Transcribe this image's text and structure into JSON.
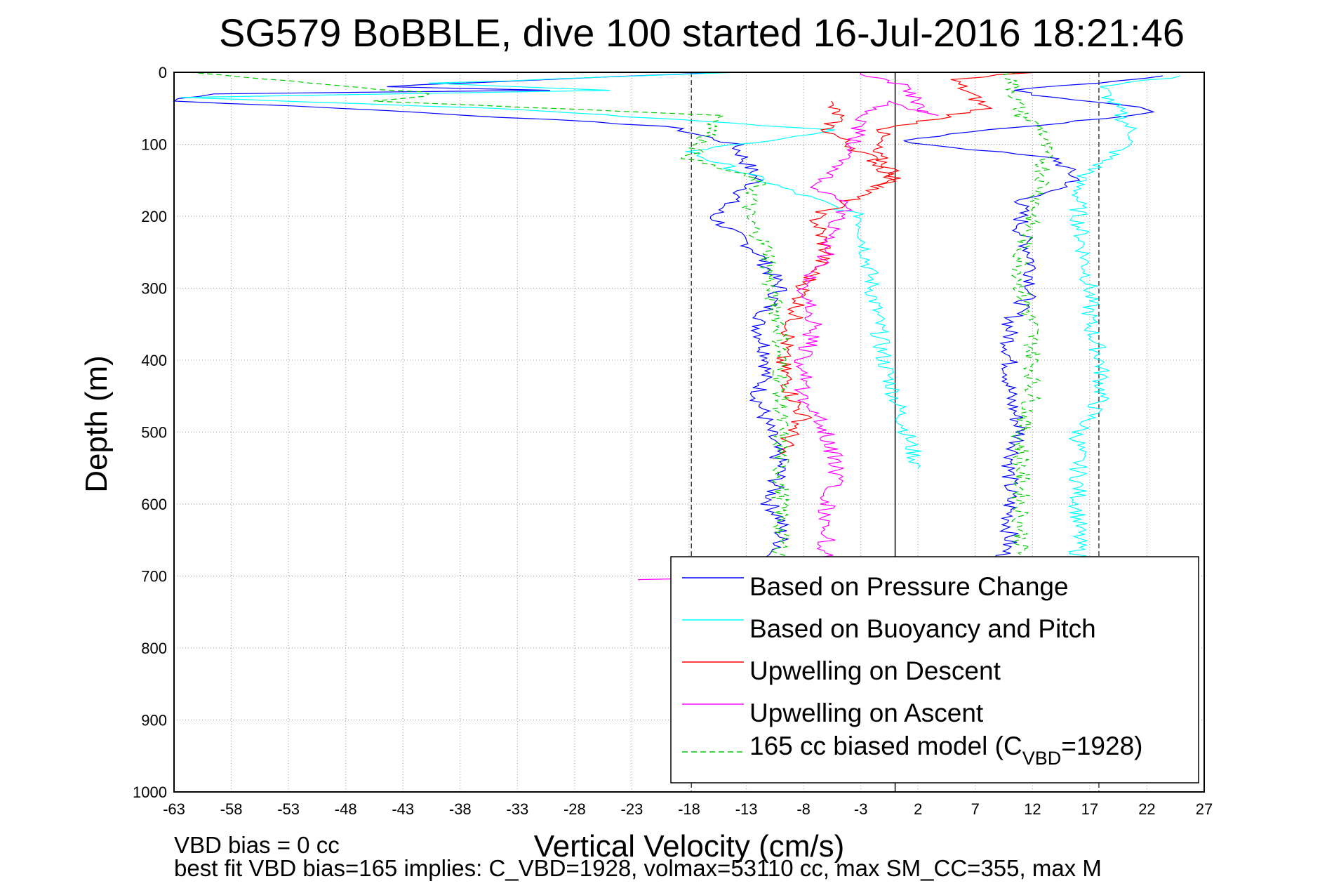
{
  "chart_data": {
    "type": "line",
    "title": "SG579 BoBBLE, dive 100 started 16-Jul-2016 18:21:46",
    "xlabel": "Vertical Velocity (cm/s)",
    "ylabel": "Depth (m)",
    "xlim": [
      -63,
      27
    ],
    "ylim": [
      0,
      1000
    ],
    "y_reversed": true,
    "grid": true,
    "xticks": [
      -63,
      -58,
      -53,
      -48,
      -43,
      -38,
      -33,
      -28,
      -23,
      -18,
      -13,
      -8,
      -3,
      2,
      7,
      12,
      17,
      22,
      27
    ],
    "yticks": [
      0,
      100,
      200,
      300,
      400,
      500,
      600,
      700,
      800,
      900,
      1000
    ],
    "legend_position": "bottom-right",
    "reference_lines": [
      {
        "x": -17.8,
        "style": "dashed",
        "color": "#404040"
      },
      {
        "x": 0,
        "style": "solid",
        "color": "#000000"
      },
      {
        "x": 17.8,
        "style": "dashed",
        "color": "#404040"
      }
    ],
    "series": [
      {
        "name": "Based on Pressure Change",
        "color": "#0000ff",
        "dash": "",
        "x": [
          -15,
          -45,
          -30,
          -60,
          -63,
          -48,
          -20,
          -14,
          -12,
          -16,
          -12,
          -10,
          -12,
          -11,
          -12,
          -11,
          -10,
          -11,
          -10,
          -10,
          -10,
          -11,
          -11,
          -11
        ],
        "y": [
          0,
          20,
          25,
          30,
          40,
          50,
          75,
          100,
          150,
          200,
          250,
          300,
          350,
          400,
          450,
          500,
          550,
          600,
          620,
          640,
          660,
          670,
          680,
          695
        ],
        "x_b": [
          24,
          18,
          10,
          14,
          20,
          23,
          0,
          14,
          16,
          11,
          11,
          12,
          12,
          10,
          10,
          10,
          11,
          10,
          10,
          9
        ],
        "y_b": [
          5,
          15,
          25,
          35,
          45,
          55,
          95,
          120,
          150,
          180,
          220,
          260,
          300,
          350,
          400,
          450,
          500,
          550,
          650,
          690
        ]
      },
      {
        "name": "Based on Buoyancy and Pitch",
        "color": "#00ffff",
        "dash": "",
        "x": [
          -13,
          -40,
          -25,
          -62,
          -35,
          -5,
          -18,
          -10,
          -3,
          -2,
          -1,
          0,
          1,
          2
        ],
        "y": [
          0,
          15,
          25,
          35,
          50,
          80,
          110,
          160,
          200,
          300,
          400,
          450,
          500,
          550
        ],
        "x_b": [
          25,
          18,
          21,
          16,
          16,
          17,
          17,
          18,
          18,
          17,
          16,
          16,
          16
        ],
        "y_b": [
          5,
          20,
          90,
          150,
          200,
          300,
          350,
          400,
          450,
          480,
          500,
          600,
          690
        ]
      },
      {
        "name": "Upwelling on Descent",
        "color": "#ff0000",
        "dash": "",
        "x": [
          -6,
          -5,
          -6,
          -4,
          -2,
          0,
          -3,
          -7,
          -6,
          -8,
          -9,
          -10,
          -9,
          -8,
          -9,
          -10
        ],
        "y": [
          40,
          60,
          80,
          100,
          120,
          150,
          170,
          200,
          250,
          300,
          350,
          400,
          450,
          480,
          500,
          530
        ],
        "x_b": [
          12,
          5,
          8,
          -1,
          -2,
          0,
          -1
        ],
        "y_b": [
          0,
          10,
          50,
          80,
          110,
          140,
          160
        ]
      },
      {
        "name": "Upwelling on Ascent",
        "color": "#ff00ff",
        "dash": "",
        "x": [
          -23,
          -7,
          -6,
          -6,
          -6,
          -5,
          -6,
          -8,
          -8,
          -7,
          -8,
          -6,
          -5,
          -4,
          -7,
          -6,
          -4,
          -3,
          0,
          3,
          1,
          -3
        ],
        "y": [
          705,
          700,
          680,
          650,
          600,
          550,
          500,
          450,
          400,
          350,
          300,
          250,
          200,
          180,
          160,
          140,
          120,
          60,
          40,
          60,
          20,
          0
        ]
      },
      {
        "name": "165 cc biased model (C_VBD=1928)",
        "color": "#00cc00",
        "dash": "8,5",
        "x": [
          -62,
          -40,
          -45,
          -15,
          -18,
          -12,
          -13,
          -11,
          -11,
          -10,
          -10,
          -10,
          -10,
          -10,
          -10,
          -10
        ],
        "y": [
          0,
          30,
          40,
          60,
          120,
          150,
          200,
          250,
          300,
          350,
          400,
          450,
          500,
          550,
          600,
          680
        ],
        "x_b": [
          10,
          11,
          13,
          13,
          12,
          11,
          11,
          12,
          12,
          12,
          11,
          11,
          11,
          11
        ],
        "y_b": [
          0,
          60,
          80,
          150,
          200,
          250,
          300,
          350,
          400,
          450,
          500,
          550,
          600,
          680
        ]
      }
    ]
  },
  "legend": {
    "items": [
      {
        "text": "Based on Pressure Change",
        "color": "#0000ff",
        "dash": ""
      },
      {
        "text": "Based on Buoyancy and Pitch",
        "color": "#00ffff",
        "dash": ""
      },
      {
        "text": "Upwelling on Descent",
        "color": "#ff0000",
        "dash": ""
      },
      {
        "text": "Upwelling on Ascent",
        "color": "#ff00ff",
        "dash": ""
      },
      {
        "text": "165 cc biased model (C",
        "sub": "VBD",
        "after": "=1928)",
        "color": "#00cc00",
        "dash": "8,5"
      }
    ]
  },
  "footer": {
    "line1": "VBD bias = 0 cc",
    "line2": "best fit VBD bias=165 implies: C_VBD=1928, volmax=53110 cc, max SM_CC=355, max M"
  }
}
